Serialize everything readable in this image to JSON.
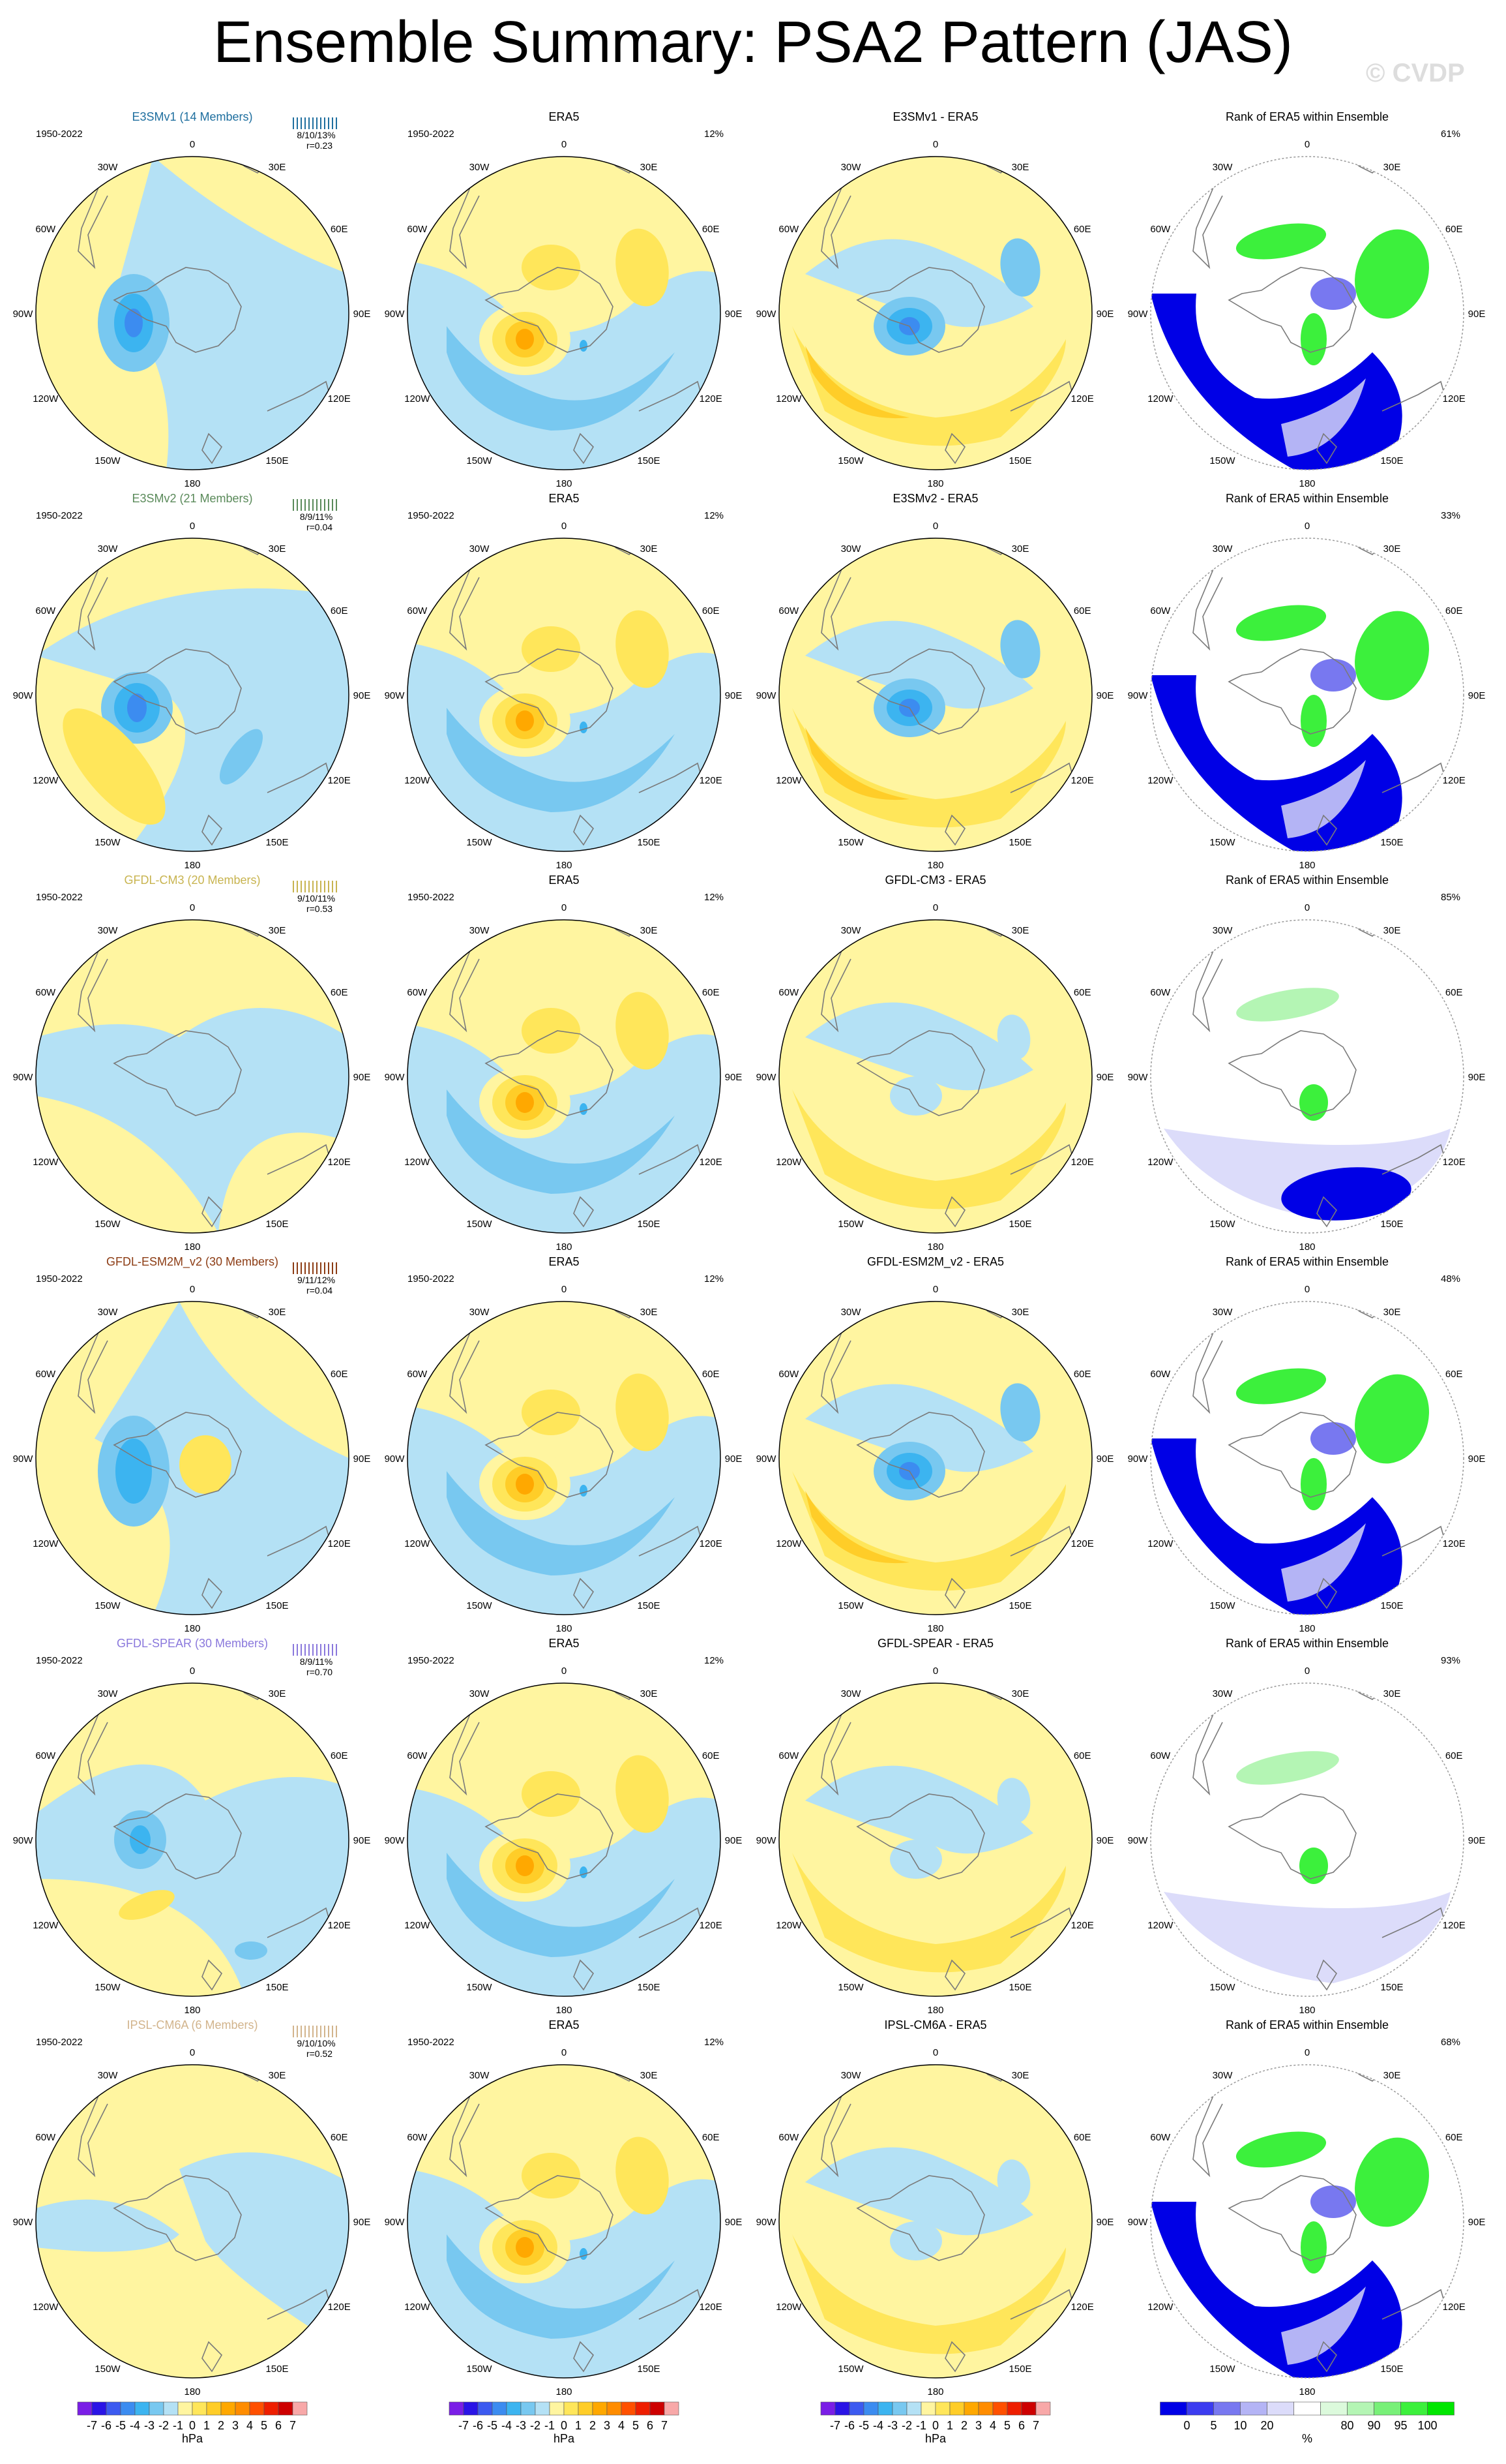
{
  "title": "Ensemble Summary: PSA2 Pattern (JAS)",
  "watermark": "© CVDP",
  "period": "1950-2022",
  "era5_title": "ERA5",
  "era5_percent": "12%",
  "rank_title": "Rank of ERA5 within Ensemble",
  "lon_labels": [
    "0",
    "30E",
    "60E",
    "90E",
    "120E",
    "150E",
    "180",
    "150W",
    "120W",
    "90W",
    "60W",
    "30W"
  ],
  "colors": {
    "contour_levels": [
      "#7a1ee6",
      "#2a14e6",
      "#3c5af0",
      "#3c8cf0",
      "#3cb4f0",
      "#78c8f0",
      "#b4e1f5",
      "#fff5a0",
      "#ffe65a",
      "#ffcd28",
      "#ffa800",
      "#ff8c00",
      "#ff5000",
      "#ee1e00",
      "#cd0000",
      "#f8a8a8"
    ],
    "rank_levels": [
      "#0000e6",
      "#3c3cf0",
      "#7878f0",
      "#b4b4f5",
      "#dcdcfa",
      "#ffffff",
      "#dcfadc",
      "#b4f5b4",
      "#78f078",
      "#3cf03c",
      "#00e600"
    ],
    "land_outline": "#7a7a7a",
    "model_colors": [
      "#1f6f9f",
      "#5a8a5a",
      "#c8b450",
      "#8c3c14",
      "#8a78dc",
      "#d2b48c"
    ]
  },
  "models": [
    {
      "name": "E3SMv1 (14 Members)",
      "diff_title": "E3SMv1 - ERA5",
      "stats": "8/10/13%",
      "corr": "r=0.23",
      "rank_pct": "61%"
    },
    {
      "name": "E3SMv2 (21 Members)",
      "diff_title": "E3SMv2 - ERA5",
      "stats": "8/9/11%",
      "corr": "r=0.04",
      "rank_pct": "33%"
    },
    {
      "name": "GFDL-CM3 (20 Members)",
      "diff_title": "GFDL-CM3 - ERA5",
      "stats": "9/10/11%",
      "corr": "r=0.53",
      "rank_pct": "85%"
    },
    {
      "name": "GFDL-ESM2M_v2 (30 Members)",
      "diff_title": "GFDL-ESM2M_v2 - ERA5",
      "stats": "9/11/12%",
      "corr": "r=0.04",
      "rank_pct": "48%"
    },
    {
      "name": "GFDL-SPEAR (30 Members)",
      "diff_title": "GFDL-SPEAR - ERA5",
      "stats": "8/9/11%",
      "corr": "r=0.70",
      "rank_pct": "93%"
    },
    {
      "name": "IPSL-CM6A (6 Members)",
      "diff_title": "IPSL-CM6A - ERA5",
      "stats": "9/10/10%",
      "corr": "r=0.52",
      "rank_pct": "68%"
    }
  ],
  "colorbar_contour": {
    "labels": [
      "-7",
      "-6",
      "-5",
      "-4",
      "-3",
      "-2",
      "-1",
      "0",
      "1",
      "2",
      "3",
      "4",
      "5",
      "6",
      "7"
    ],
    "unit": "hPa"
  },
  "colorbar_rank": {
    "labels": [
      "0",
      "5",
      "10",
      "20",
      "80",
      "90",
      "95",
      "100"
    ],
    "unit": "%"
  },
  "chart_data": {
    "type": "heatmap",
    "projection": "south polar stereographic",
    "grid_rows": "ensemble members: E3SMv1, E3SMv2, GFDL-CM3, GFDL-ESM2M_v2, GFDL-SPEAR, IPSL-CM6A",
    "columns": [
      "ensemble mean",
      "ERA5",
      "ensemble - ERA5",
      "rank of ERA5 within ensemble"
    ],
    "contour_levels": [
      -7,
      -6,
      -5,
      -4,
      -3,
      -2,
      -1,
      0,
      1,
      2,
      3,
      4,
      5,
      6,
      7
    ],
    "rank_levels": [
      0,
      5,
      10,
      20,
      80,
      90,
      95,
      100
    ]
  }
}
